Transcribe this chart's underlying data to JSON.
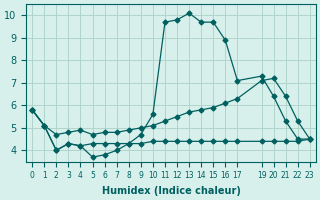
{
  "xlabel": "Humidex (Indice chaleur)",
  "ylabel": "",
  "bg_color": "#d8f0ec",
  "grid_color": "#b0d4cc",
  "line_color": "#006060",
  "ylim": [
    3.5,
    10.5
  ],
  "xlim": [
    -0.5,
    23.5
  ],
  "yticks": [
    4,
    5,
    6,
    7,
    8,
    9,
    10
  ],
  "xticks": [
    0,
    1,
    2,
    3,
    4,
    5,
    6,
    7,
    8,
    9,
    10,
    11,
    12,
    13,
    14,
    15,
    16,
    17,
    19,
    20,
    21,
    22,
    23
  ],
  "line1_x": [
    0,
    1,
    2,
    3,
    4,
    5,
    6,
    7,
    8,
    9,
    10,
    11,
    12,
    13,
    14,
    15,
    16,
    17,
    19,
    20,
    21,
    22,
    23
  ],
  "line1_y": [
    5.8,
    5.1,
    4.0,
    4.3,
    4.2,
    3.7,
    3.8,
    4.0,
    4.3,
    4.7,
    5.6,
    9.7,
    9.8,
    10.1,
    9.7,
    9.7,
    8.9,
    7.1,
    7.3,
    6.4,
    5.3,
    4.5,
    4.5
  ],
  "line2_x": [
    0,
    1,
    2,
    3,
    4,
    5,
    6,
    7,
    8,
    9,
    10,
    11,
    12,
    13,
    14,
    15,
    16,
    17,
    19,
    20,
    21,
    22,
    23
  ],
  "line2_y": [
    5.8,
    5.1,
    4.7,
    4.8,
    4.9,
    4.7,
    4.8,
    4.8,
    4.9,
    5.0,
    5.1,
    5.3,
    5.5,
    5.7,
    5.8,
    5.9,
    6.1,
    6.3,
    7.1,
    7.2,
    6.4,
    5.3,
    4.5
  ],
  "line3_x": [
    0,
    1,
    2,
    3,
    4,
    5,
    6,
    7,
    8,
    9,
    10,
    11,
    12,
    13,
    14,
    15,
    16,
    17,
    19,
    20,
    21,
    22,
    23
  ],
  "line3_y": [
    5.8,
    5.1,
    4.0,
    4.3,
    4.2,
    4.3,
    4.3,
    4.3,
    4.3,
    4.3,
    4.4,
    4.4,
    4.4,
    4.4,
    4.4,
    4.4,
    4.4,
    4.4,
    4.4,
    4.4,
    4.4,
    4.4,
    4.5
  ]
}
